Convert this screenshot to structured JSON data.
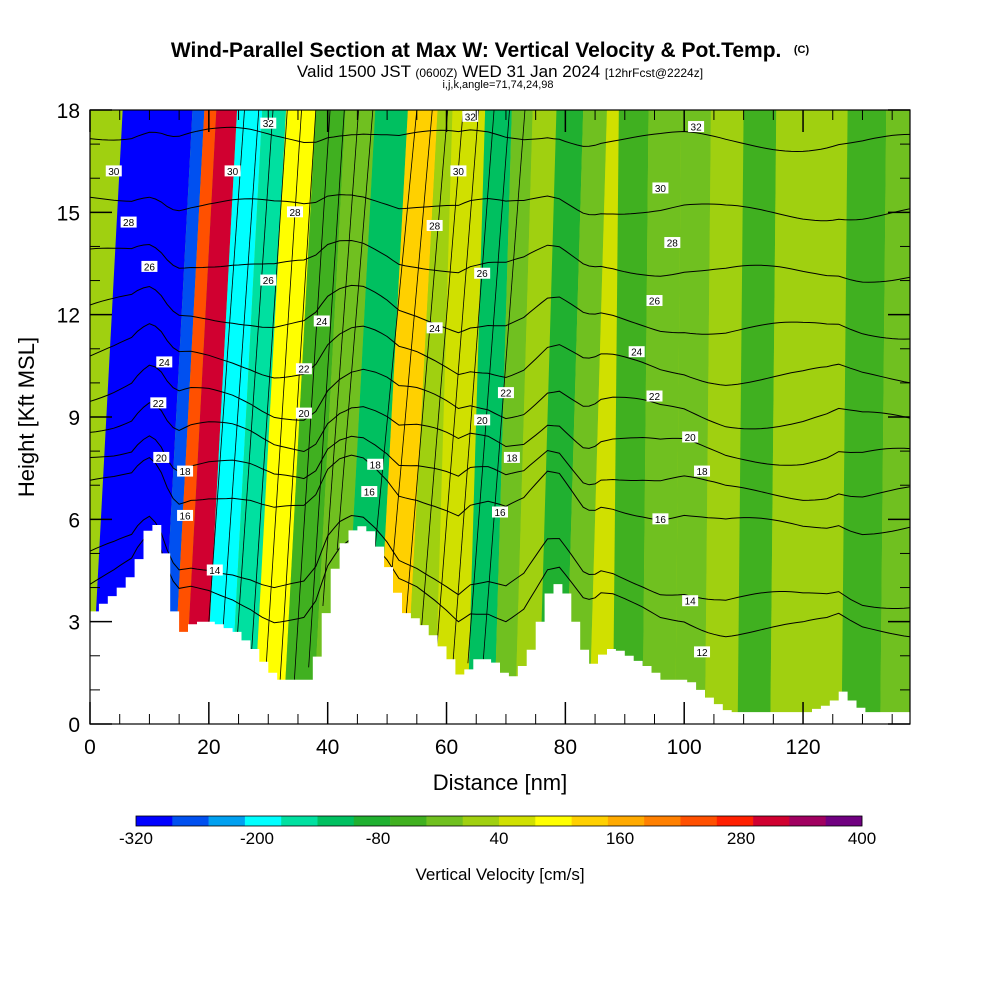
{
  "chart_data": {
    "type": "heatmap",
    "title": "Wind-Parallel Section at Max W: Vertical Velocity & Pot.Temp.",
    "title_mark": "(C)",
    "subtitle_parts": [
      "Valid 1500 JST ",
      "(0600Z)",
      " WED 31 Jan 2024 ",
      "[12hrFcst@2224z]"
    ],
    "subtitle2": "i,j,k,angle=71,74,24,98",
    "xlabel": "Distance [nm]",
    "ylabel": "Height [Kft MSL]",
    "xlim": [
      0,
      138
    ],
    "ylim": [
      0,
      18
    ],
    "x_ticks": [
      "0",
      "20",
      "40",
      "60",
      "80",
      "100",
      "120"
    ],
    "x_tick_values": [
      0,
      20,
      40,
      60,
      80,
      100,
      120
    ],
    "y_ticks": [
      "0",
      "3",
      "6",
      "9",
      "12",
      "15",
      "18"
    ],
    "y_tick_values": [
      0,
      3,
      6,
      9,
      12,
      15,
      18
    ],
    "colorbar": {
      "label": "Vertical Velocity [cm/s]",
      "tick_labels": [
        "-320",
        "-200",
        "-80",
        "40",
        "160",
        "280",
        "400"
      ],
      "tick_values": [
        -320,
        -200,
        -80,
        40,
        160,
        280,
        400
      ],
      "range": [
        -320,
        400
      ],
      "step": 40,
      "colors": [
        "#0000ff",
        "#0050f0",
        "#00a0f0",
        "#00ffff",
        "#00e0a0",
        "#00c060",
        "#20b030",
        "#40b020",
        "#70c020",
        "#a0d010",
        "#d0e000",
        "#ffff00",
        "#ffd000",
        "#ffaa00",
        "#ff8000",
        "#ff5000",
        "#ff2000",
        "#d00030",
        "#a00060",
        "#700080"
      ]
    },
    "velocity_bands": [
      {
        "x": 11,
        "value": -320
      },
      {
        "x": 12.5,
        "value": -260
      },
      {
        "x": 15,
        "value": 280
      },
      {
        "x": 16.5,
        "value": 360
      },
      {
        "x": 22,
        "value": -200
      },
      {
        "x": 25,
        "value": -140
      },
      {
        "x": 30,
        "value": 120
      },
      {
        "x": 35,
        "value": -40
      },
      {
        "x": 40,
        "value": 20
      },
      {
        "x": 45,
        "value": -120
      },
      {
        "x": 51,
        "value": 160
      },
      {
        "x": 55,
        "value": 40
      },
      {
        "x": 61,
        "value": 80
      },
      {
        "x": 66,
        "value": -100
      },
      {
        "x": 70,
        "value": 20
      },
      {
        "x": 73,
        "value": 40
      },
      {
        "x": 78,
        "value": -60
      },
      {
        "x": 82,
        "value": 0
      },
      {
        "x": 86,
        "value": 100
      },
      {
        "x": 90,
        "value": -20
      },
      {
        "x": 96,
        "value": 20
      },
      {
        "x": 101,
        "value": 0
      },
      {
        "x": 106,
        "value": 40
      },
      {
        "x": 112,
        "value": -40
      },
      {
        "x": 117,
        "value": 40
      },
      {
        "x": 123,
        "value": 60
      },
      {
        "x": 130,
        "value": -40
      },
      {
        "x": 136,
        "value": 0
      }
    ],
    "terrain": [
      {
        "x": 0,
        "h": 3.3
      },
      {
        "x": 2,
        "h": 3.6
      },
      {
        "x": 4,
        "h": 3.9
      },
      {
        "x": 5.5,
        "h": 4.2
      },
      {
        "x": 7,
        "h": 4.5
      },
      {
        "x": 8.5,
        "h": 5.5
      },
      {
        "x": 10,
        "h": 6.0
      },
      {
        "x": 11.5,
        "h": 5.5
      },
      {
        "x": 12.5,
        "h": 4.5
      },
      {
        "x": 13.5,
        "h": 3.3
      },
      {
        "x": 15,
        "h": 2.7
      },
      {
        "x": 17,
        "h": 3.0
      },
      {
        "x": 20,
        "h": 3.0
      },
      {
        "x": 24,
        "h": 2.7
      },
      {
        "x": 27,
        "h": 2.2
      },
      {
        "x": 29,
        "h": 1.7
      },
      {
        "x": 31,
        "h": 1.3
      },
      {
        "x": 36,
        "h": 1.3
      },
      {
        "x": 38,
        "h": 2.2
      },
      {
        "x": 40,
        "h": 4.3
      },
      {
        "x": 42,
        "h": 5.3
      },
      {
        "x": 44,
        "h": 5.8
      },
      {
        "x": 46,
        "h": 5.8
      },
      {
        "x": 48,
        "h": 5.2
      },
      {
        "x": 50,
        "h": 4.4
      },
      {
        "x": 52,
        "h": 3.3
      },
      {
        "x": 55,
        "h": 3.0
      },
      {
        "x": 58,
        "h": 2.4
      },
      {
        "x": 60,
        "h": 1.9
      },
      {
        "x": 62,
        "h": 1.3
      },
      {
        "x": 64,
        "h": 1.9
      },
      {
        "x": 67,
        "h": 1.9
      },
      {
        "x": 70,
        "h": 1.3
      },
      {
        "x": 73,
        "h": 1.9
      },
      {
        "x": 75,
        "h": 3.0
      },
      {
        "x": 77,
        "h": 4.1
      },
      {
        "x": 79,
        "h": 4.1
      },
      {
        "x": 81,
        "h": 3.0
      },
      {
        "x": 83,
        "h": 1.9
      },
      {
        "x": 84.5,
        "h": 1.7
      },
      {
        "x": 86,
        "h": 2.2
      },
      {
        "x": 88,
        "h": 2.2
      },
      {
        "x": 90,
        "h": 2.0
      },
      {
        "x": 93,
        "h": 1.7
      },
      {
        "x": 96,
        "h": 1.3
      },
      {
        "x": 100,
        "h": 1.3
      },
      {
        "x": 104,
        "h": 0.7
      },
      {
        "x": 107,
        "h": 0.35
      },
      {
        "x": 115,
        "h": 0.35
      },
      {
        "x": 120,
        "h": 0.35
      },
      {
        "x": 124,
        "h": 0.6
      },
      {
        "x": 126,
        "h": 0.95
      },
      {
        "x": 128,
        "h": 0.6
      },
      {
        "x": 130,
        "h": 0.35
      },
      {
        "x": 138,
        "h": 0.35
      }
    ],
    "theta_contours": [
      {
        "base_h": 3.6,
        "label": "12",
        "lx": 103,
        "ly": 2.1
      },
      {
        "base_h": 4.4,
        "label": "14",
        "lx": 101,
        "ly": 3.6
      },
      {
        "base_h": 6.5,
        "label": "16",
        "lx": 96,
        "ly": 6.0
      },
      {
        "base_h": 7.4,
        "label": "18",
        "lx": 103,
        "ly": 7.4
      },
      {
        "base_h": 8.4,
        "label": "20",
        "lx": 101,
        "ly": 8.4
      },
      {
        "base_h": 9.4,
        "label": "22",
        "lx": 95,
        "ly": 9.6
      },
      {
        "base_h": 10.6,
        "label": "24",
        "lx": 92,
        "ly": 10.9
      },
      {
        "base_h": 11.9,
        "label": "26",
        "lx": 95,
        "ly": 12.4
      },
      {
        "base_h": 13.5,
        "label": "28",
        "lx": 98,
        "ly": 14.1
      },
      {
        "base_h": 15.2,
        "label": "30",
        "lx": 96,
        "ly": 15.7
      },
      {
        "base_h": 17.2,
        "label": "32",
        "lx": 102,
        "ly": 17.5
      }
    ],
    "extra_contour_labels": [
      {
        "label": "30",
        "x": 4,
        "y": 16.2
      },
      {
        "label": "28",
        "x": 6.5,
        "y": 14.7
      },
      {
        "label": "26",
        "x": 10,
        "y": 13.4
      },
      {
        "label": "24",
        "x": 12.5,
        "y": 10.6
      },
      {
        "label": "22",
        "x": 11.5,
        "y": 9.4
      },
      {
        "label": "20",
        "x": 12,
        "y": 7.8
      },
      {
        "label": "18",
        "x": 16,
        "y": 7.4
      },
      {
        "label": "16",
        "x": 16,
        "y": 6.1
      },
      {
        "label": "14",
        "x": 21,
        "y": 4.5
      },
      {
        "label": "30",
        "x": 24,
        "y": 16.2
      },
      {
        "label": "32",
        "x": 30,
        "y": 17.6
      },
      {
        "label": "28",
        "x": 34.5,
        "y": 15.0
      },
      {
        "label": "26",
        "x": 30,
        "y": 13.0
      },
      {
        "label": "24",
        "x": 39,
        "y": 11.8
      },
      {
        "label": "22",
        "x": 36,
        "y": 10.4
      },
      {
        "label": "20",
        "x": 36,
        "y": 9.1
      },
      {
        "label": "18",
        "x": 48,
        "y": 7.6
      },
      {
        "label": "16",
        "x": 47,
        "y": 6.8
      },
      {
        "label": "32",
        "x": 64,
        "y": 17.8
      },
      {
        "label": "30",
        "x": 62,
        "y": 16.2
      },
      {
        "label": "28",
        "x": 58,
        "y": 14.6
      },
      {
        "label": "26",
        "x": 66,
        "y": 13.2
      },
      {
        "label": "24",
        "x": 58,
        "y": 11.6
      },
      {
        "label": "22",
        "x": 70,
        "y": 9.7
      },
      {
        "label": "20",
        "x": 66,
        "y": 8.9
      },
      {
        "label": "18",
        "x": 71,
        "y": 7.8
      },
      {
        "label": "16",
        "x": 69,
        "y": 6.2
      }
    ]
  }
}
